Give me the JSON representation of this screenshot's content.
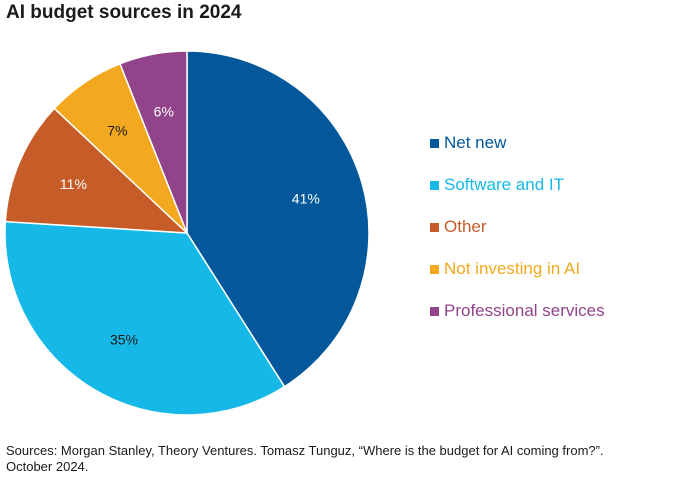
{
  "chart_data": {
    "type": "pie",
    "title": "AI budget sources in 2024",
    "categories": [
      "Net new",
      "Software and IT",
      "Other",
      "Not investing in AI",
      "Professional services"
    ],
    "values": [
      41,
      35,
      11,
      7,
      6
    ],
    "value_labels": [
      "41%",
      "35%",
      "11%",
      "7%",
      "6%"
    ],
    "colors": [
      "#02589a",
      "#15b8e6",
      "#c65d28",
      "#f2a91f",
      "#92448a"
    ],
    "label_colors": [
      "#ffffff",
      "#1a1a1a",
      "#ffffff",
      "#1a1a1a",
      "#ffffff"
    ],
    "start": "12 o'clock, clockwise",
    "legend_position": "right"
  },
  "source": {
    "line1": "Sources: Morgan Stanley, Theory Ventures. Tomasz Tunguz, “Where is the budget for AI coming from?”.",
    "line2": "October 2024."
  }
}
